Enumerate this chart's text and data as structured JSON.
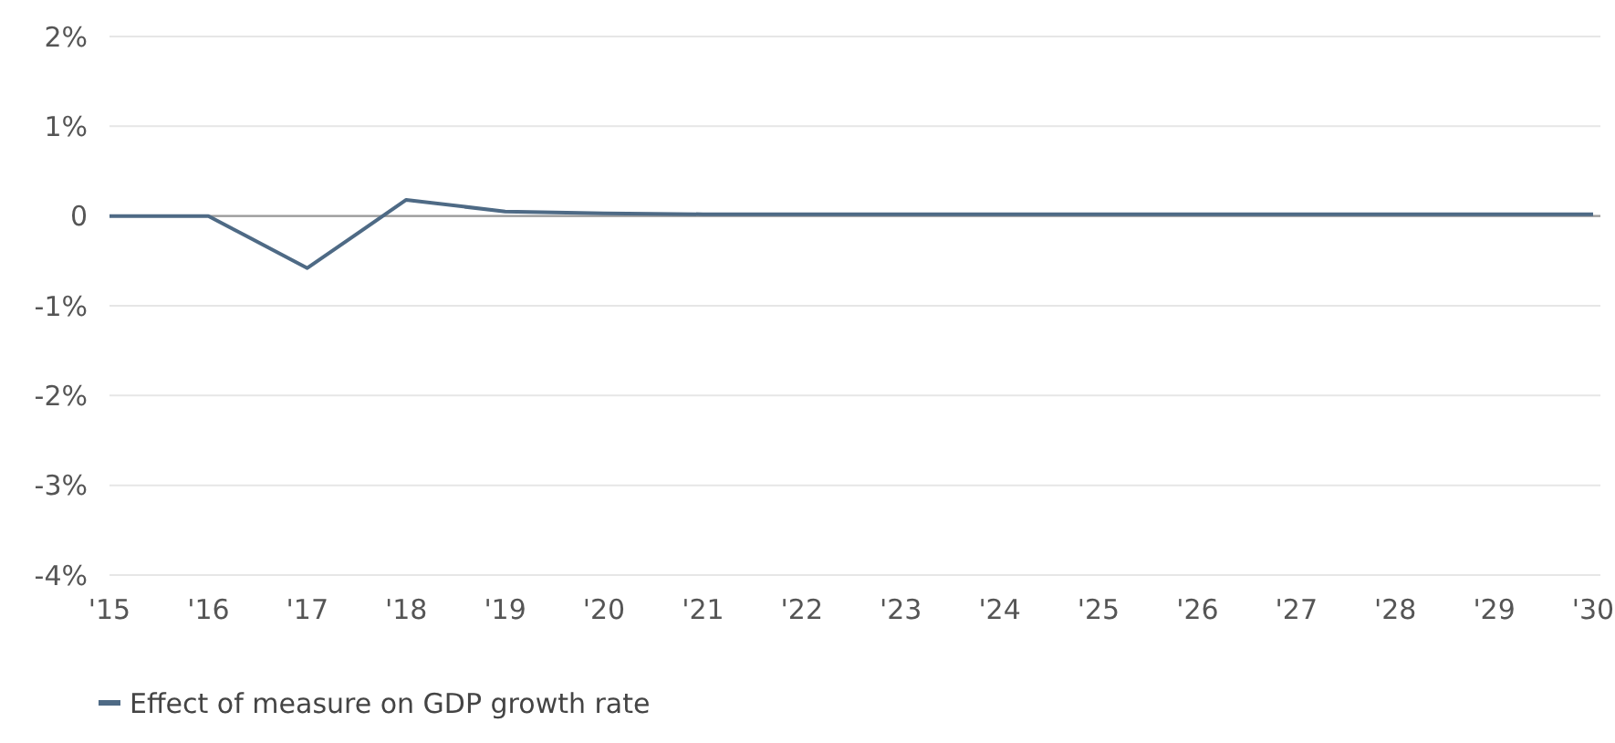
{
  "chart_data": {
    "type": "line",
    "categories": [
      "'15",
      "'16",
      "'17",
      "'18",
      "'19",
      "'20",
      "'21",
      "'22",
      "'23",
      "'24",
      "'25",
      "'26",
      "'27",
      "'28",
      "'29",
      "'30"
    ],
    "series": [
      {
        "name": "Effect of measure on GDP growth rate",
        "color": "#4e6a85",
        "values": [
          0,
          0,
          -0.58,
          0.18,
          0.05,
          0.03,
          0.02,
          0.02,
          0.02,
          0.02,
          0.02,
          0.02,
          0.02,
          0.02,
          0.02,
          0.02
        ]
      }
    ],
    "ylim": [
      -4,
      2
    ],
    "yticks": [
      {
        "value": -4,
        "label": "-4%"
      },
      {
        "value": -3,
        "label": "-3%"
      },
      {
        "value": -2,
        "label": "-2%"
      },
      {
        "value": -1,
        "label": "-1%"
      },
      0,
      {
        "value": 1,
        "label": "1%"
      },
      {
        "value": 2,
        "label": "2%"
      }
    ],
    "grid": "y",
    "legend": "bottom left",
    "marker": "none",
    "line_style": "solid",
    "ref_lines": [
      {
        "axis": "y",
        "value": 0,
        "color": "#999999"
      }
    ]
  }
}
